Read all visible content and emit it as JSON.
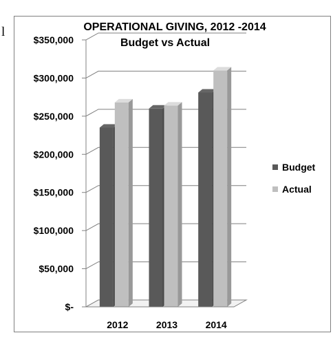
{
  "page": {
    "left_fragment": "l"
  },
  "colors": {
    "budget": "#595959",
    "actual": "#bfbfbf",
    "axis": "#808080",
    "grid": "#7f7f7f"
  },
  "chart_data": {
    "type": "bar",
    "title": "OPERATIONAL GIVING, 2012 -2014",
    "subtitle": "Budget vs Actual",
    "xlabel": "",
    "ylabel": "",
    "categories": [
      "2012",
      "2013",
      "2014"
    ],
    "series": [
      {
        "name": "Budget",
        "values": [
          235000,
          260000,
          281000
        ]
      },
      {
        "name": "Actual",
        "values": [
          268000,
          264000,
          310000
        ]
      }
    ],
    "ylim": [
      0,
      350000
    ],
    "yticks": [
      0,
      50000,
      100000,
      150000,
      200000,
      250000,
      300000,
      350000
    ],
    "ytick_labels": [
      "$-",
      "$50,000",
      "$100,000",
      "$150,000",
      "$200,000",
      "$250,000",
      "$300,000",
      "$350,000"
    ],
    "grid": true,
    "legend_position": "right",
    "style": "3d-clustered-column"
  }
}
